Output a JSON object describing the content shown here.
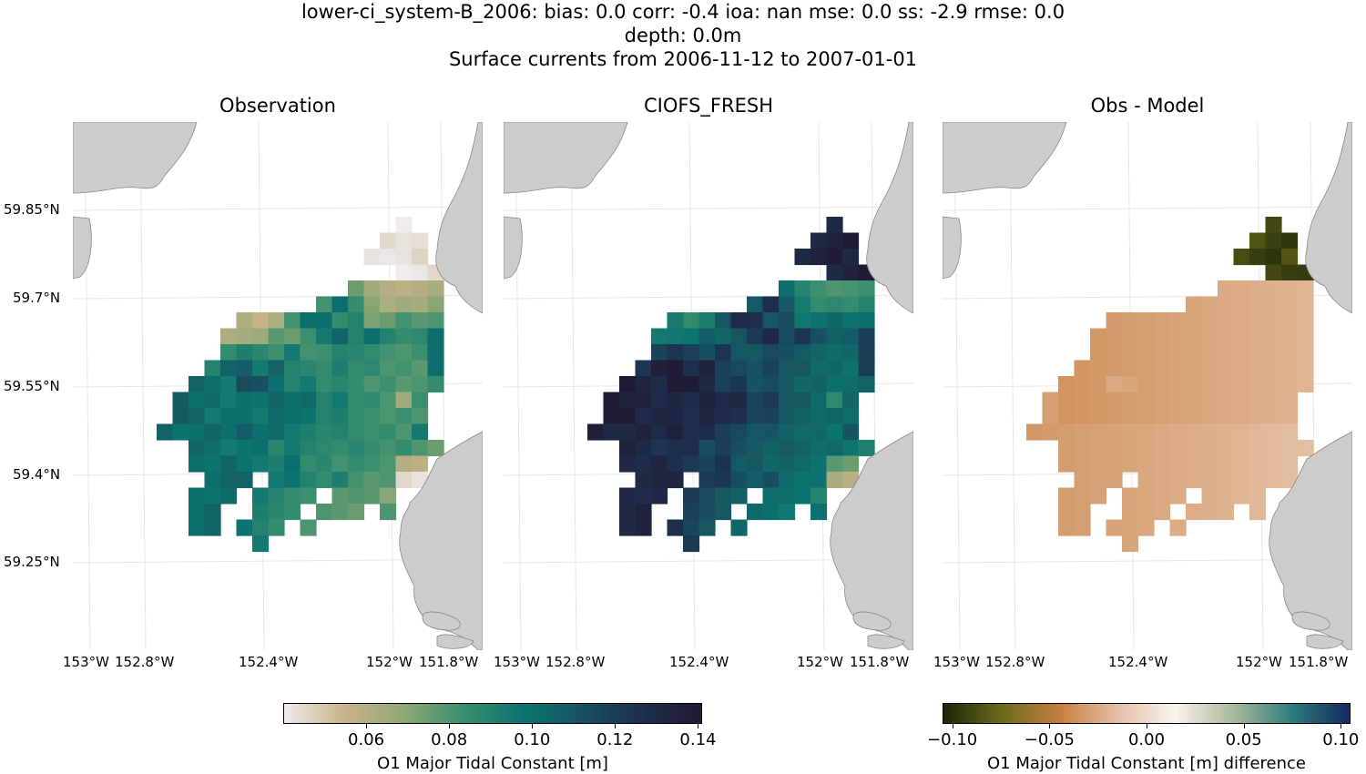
{
  "header": {
    "line1": "lower-ci_system-B_2006: bias: 0.0  corr: -0.4  ioa: nan  mse: 0.0  ss: -2.9  rmse: 0.0",
    "line2": "depth: 0.0m",
    "line3": "Surface currents from 2006-11-12 to 2007-01-01"
  },
  "panels": [
    {
      "title": "Observation"
    },
    {
      "title": "CIOFS_FRESH"
    },
    {
      "title": "Obs - Model"
    }
  ],
  "axes": {
    "lat_labels": [
      "59.85°N",
      "59.7°N",
      "59.55°N",
      "59.4°N",
      "59.25°N"
    ],
    "lon_labels": [
      "153°W",
      "152.8°W",
      "152.4°W",
      "152°W",
      "151.8°W"
    ]
  },
  "colors": {
    "land": "#cccccc",
    "coast": "#888888",
    "grid": "#e6e6e6",
    "cmap_rain": [
      "#eeeaee",
      "#c9b48a",
      "#8fa874",
      "#3a8f6e",
      "#0b7470",
      "#175360",
      "#1e2e4c",
      "#201a33"
    ],
    "cmap_diff": [
      "#1a2508",
      "#6b6a1c",
      "#c67e3e",
      "#e4c0a5",
      "#f8f3ef",
      "#a9b89c",
      "#2d7c7c",
      "#142960"
    ]
  },
  "colorbars": [
    {
      "label": "O1 Major Tidal Constant [m]",
      "ticks": [
        "0.06",
        "0.08",
        "0.10",
        "0.12",
        "0.14"
      ],
      "tick_values": [
        0.06,
        0.08,
        0.1,
        0.12,
        0.14
      ],
      "range": [
        0.04,
        0.141
      ]
    },
    {
      "label": "O1 Major Tidal Constant [m] difference",
      "ticks": [
        "−0.10",
        "−0.05",
        "0.00",
        "0.05",
        "0.10"
      ],
      "tick_values": [
        -0.1,
        -0.05,
        0.0,
        0.05,
        0.1
      ],
      "range": [
        -0.105,
        0.105
      ]
    }
  ],
  "grid_field": {
    "rows": [
      {
        "r": 0,
        "cells": [
          [
            15,
            0.04
          ]
        ]
      },
      {
        "r": 1,
        "cells": [
          [
            14,
            0.045
          ],
          [
            15,
            0.042
          ],
          [
            16,
            0.043
          ]
        ]
      },
      {
        "r": 2,
        "cells": [
          [
            13,
            0.042
          ],
          [
            14,
            0.041
          ],
          [
            15,
            0.042
          ],
          [
            16,
            0.046
          ]
        ]
      },
      {
        "r": 3,
        "cells": [
          [
            15,
            0.04
          ],
          [
            16,
            0.041
          ],
          [
            17,
            0.045
          ]
        ]
      },
      {
        "r": 4,
        "cells": [
          [
            12,
            0.075
          ],
          [
            13,
            0.065
          ],
          [
            14,
            0.06
          ],
          [
            15,
            0.058
          ],
          [
            16,
            0.06
          ],
          [
            17,
            0.063
          ]
        ]
      },
      {
        "r": 5,
        "cells": [
          [
            10,
            0.082
          ],
          [
            11,
            0.1
          ],
          [
            12,
            0.085
          ],
          [
            13,
            0.07
          ],
          [
            14,
            0.062
          ],
          [
            15,
            0.065
          ],
          [
            16,
            0.064
          ],
          [
            17,
            0.07
          ]
        ]
      },
      {
        "r": 6,
        "cells": [
          [
            5,
            0.062
          ],
          [
            6,
            0.055
          ],
          [
            7,
            0.062
          ],
          [
            8,
            0.082
          ],
          [
            9,
            0.1
          ],
          [
            10,
            0.1
          ],
          [
            11,
            0.085
          ],
          [
            12,
            0.09
          ],
          [
            13,
            0.072
          ],
          [
            14,
            0.075
          ],
          [
            15,
            0.082
          ],
          [
            16,
            0.078
          ],
          [
            17,
            0.08
          ]
        ]
      },
      {
        "r": 7,
        "cells": [
          [
            4,
            0.062
          ],
          [
            5,
            0.064
          ],
          [
            6,
            0.066
          ],
          [
            7,
            0.078
          ],
          [
            8,
            0.075
          ],
          [
            9,
            0.083
          ],
          [
            10,
            0.095
          ],
          [
            11,
            0.105
          ],
          [
            12,
            0.09
          ],
          [
            13,
            0.1
          ],
          [
            14,
            0.09
          ],
          [
            15,
            0.085
          ],
          [
            16,
            0.087
          ],
          [
            17,
            0.1
          ]
        ]
      },
      {
        "r": 8,
        "cells": [
          [
            4,
            0.085
          ],
          [
            5,
            0.092
          ],
          [
            6,
            0.088
          ],
          [
            7,
            0.083
          ],
          [
            8,
            0.095
          ],
          [
            9,
            0.082
          ],
          [
            10,
            0.083
          ],
          [
            11,
            0.09
          ],
          [
            12,
            0.088
          ],
          [
            13,
            0.085
          ],
          [
            14,
            0.082
          ],
          [
            15,
            0.08
          ],
          [
            16,
            0.083
          ],
          [
            17,
            0.1
          ]
        ]
      },
      {
        "r": 9,
        "cells": [
          [
            3,
            0.09
          ],
          [
            4,
            0.105
          ],
          [
            5,
            0.108
          ],
          [
            6,
            0.095
          ],
          [
            7,
            0.105
          ],
          [
            8,
            0.09
          ],
          [
            9,
            0.088
          ],
          [
            10,
            0.085
          ],
          [
            11,
            0.092
          ],
          [
            12,
            0.085
          ],
          [
            13,
            0.087
          ],
          [
            14,
            0.08
          ],
          [
            15,
            0.082
          ],
          [
            16,
            0.078
          ],
          [
            17,
            0.1
          ]
        ]
      },
      {
        "r": 10,
        "cells": [
          [
            2,
            0.105
          ],
          [
            3,
            0.1
          ],
          [
            4,
            0.095
          ],
          [
            5,
            0.115
          ],
          [
            6,
            0.113
          ],
          [
            7,
            0.1
          ],
          [
            8,
            0.09
          ],
          [
            9,
            0.095
          ],
          [
            10,
            0.085
          ],
          [
            11,
            0.088
          ],
          [
            12,
            0.085
          ],
          [
            13,
            0.08
          ],
          [
            14,
            0.083
          ],
          [
            15,
            0.078
          ],
          [
            16,
            0.08
          ],
          [
            17,
            0.085
          ]
        ]
      },
      {
        "r": 11,
        "cells": [
          [
            1,
            0.11
          ],
          [
            2,
            0.1
          ],
          [
            3,
            0.103
          ],
          [
            4,
            0.095
          ],
          [
            5,
            0.1
          ],
          [
            6,
            0.098
          ],
          [
            7,
            0.105
          ],
          [
            8,
            0.1
          ],
          [
            9,
            0.103
          ],
          [
            10,
            0.09
          ],
          [
            11,
            0.095
          ],
          [
            12,
            0.085
          ],
          [
            13,
            0.087
          ],
          [
            14,
            0.08
          ],
          [
            15,
            0.065
          ],
          [
            16,
            0.083
          ]
        ]
      },
      {
        "r": 12,
        "cells": [
          [
            1,
            0.11
          ],
          [
            2,
            0.105
          ],
          [
            3,
            0.095
          ],
          [
            4,
            0.1
          ],
          [
            5,
            0.1
          ],
          [
            6,
            0.095
          ],
          [
            7,
            0.103
          ],
          [
            8,
            0.1
          ],
          [
            9,
            0.098
          ],
          [
            10,
            0.09
          ],
          [
            11,
            0.092
          ],
          [
            12,
            0.085
          ],
          [
            13,
            0.083
          ],
          [
            14,
            0.08
          ],
          [
            15,
            0.083
          ],
          [
            16,
            0.08
          ]
        ]
      },
      {
        "r": 13,
        "cells": [
          [
            0,
            0.105
          ],
          [
            1,
            0.098
          ],
          [
            2,
            0.1
          ],
          [
            3,
            0.105
          ],
          [
            4,
            0.1
          ],
          [
            5,
            0.108
          ],
          [
            6,
            0.1
          ],
          [
            7,
            0.103
          ],
          [
            8,
            0.095
          ],
          [
            9,
            0.092
          ],
          [
            10,
            0.088
          ],
          [
            11,
            0.09
          ],
          [
            12,
            0.085
          ],
          [
            13,
            0.083
          ],
          [
            14,
            0.085
          ],
          [
            15,
            0.08
          ],
          [
            16,
            0.095
          ]
        ]
      },
      {
        "r": 14,
        "cells": [
          [
            2,
            0.105
          ],
          [
            3,
            0.1
          ],
          [
            4,
            0.095
          ],
          [
            5,
            0.098
          ],
          [
            6,
            0.1
          ],
          [
            7,
            0.088
          ],
          [
            8,
            0.095
          ],
          [
            9,
            0.09
          ],
          [
            10,
            0.087
          ],
          [
            11,
            0.085
          ],
          [
            12,
            0.088
          ],
          [
            13,
            0.085
          ],
          [
            14,
            0.082
          ],
          [
            15,
            0.085
          ],
          [
            16,
            0.08
          ],
          [
            17,
            0.075
          ]
        ]
      },
      {
        "r": 15,
        "cells": [
          [
            2,
            0.1
          ],
          [
            3,
            0.098
          ],
          [
            4,
            0.105
          ],
          [
            5,
            0.098
          ],
          [
            6,
            0.095
          ],
          [
            7,
            0.092
          ],
          [
            8,
            0.1
          ],
          [
            9,
            0.085
          ],
          [
            10,
            0.088
          ],
          [
            11,
            0.082
          ],
          [
            12,
            0.085
          ],
          [
            13,
            0.083
          ],
          [
            14,
            0.08
          ],
          [
            15,
            0.06
          ],
          [
            16,
            0.058
          ]
        ]
      },
      {
        "r": 16,
        "cells": [
          [
            3,
            0.1
          ],
          [
            4,
            0.105
          ],
          [
            5,
            0.105
          ],
          [
            7,
            0.095
          ],
          [
            8,
            0.098
          ],
          [
            9,
            0.09
          ],
          [
            10,
            0.085
          ],
          [
            11,
            0.092
          ],
          [
            12,
            0.082
          ],
          [
            13,
            0.078
          ],
          [
            14,
            0.08
          ],
          [
            15,
            0.045
          ],
          [
            16,
            0.042
          ]
        ]
      },
      {
        "r": 17,
        "cells": [
          [
            2,
            0.1
          ],
          [
            3,
            0.098
          ],
          [
            4,
            0.102
          ],
          [
            6,
            0.095
          ],
          [
            7,
            0.09
          ],
          [
            8,
            0.085
          ],
          [
            9,
            0.083
          ],
          [
            11,
            0.078
          ],
          [
            12,
            0.08
          ],
          [
            13,
            0.078
          ],
          [
            14,
            0.07
          ]
        ]
      },
      {
        "r": 18,
        "cells": [
          [
            2,
            0.1
          ],
          [
            3,
            0.105
          ],
          [
            6,
            0.092
          ],
          [
            7,
            0.088
          ],
          [
            8,
            0.085
          ],
          [
            10,
            0.08
          ],
          [
            11,
            0.078
          ],
          [
            12,
            0.075
          ],
          [
            14,
            0.08
          ]
        ]
      },
      {
        "r": 19,
        "cells": [
          [
            2,
            0.1
          ],
          [
            3,
            0.105
          ],
          [
            5,
            0.098
          ],
          [
            6,
            0.09
          ],
          [
            7,
            0.085
          ],
          [
            9,
            0.08
          ]
        ]
      },
      {
        "r": 20,
        "cells": [
          [
            6,
            0.095
          ]
        ]
      }
    ]
  }
}
